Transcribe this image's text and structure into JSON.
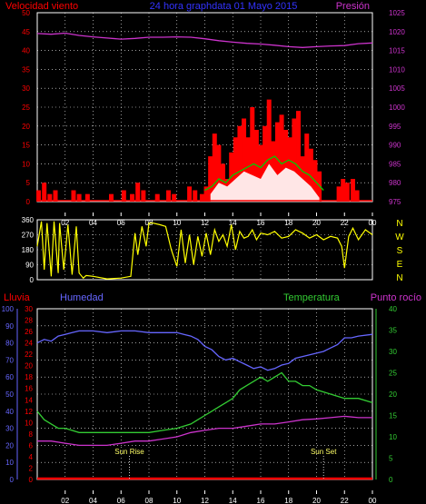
{
  "header": {
    "wind_label": "Velocidad viento",
    "title": "24 hora graphdata  01 Mayo 2015",
    "pressure_label": "Presión"
  },
  "dir_labels": [
    "N",
    "W",
    "S",
    "E",
    "N"
  ],
  "bottom_header": {
    "rain_label": "Lluvia",
    "humidity_label": "Humedad",
    "temperature_label": "Temperatura",
    "dewpoint_label": "Punto rocío"
  },
  "annotations": {
    "sunrise": "Sun Rise",
    "sunset": "Sun Set"
  },
  "colors": {
    "wind": "#ff0000",
    "gust": "#ffffff",
    "avg_wind": "#00cc00",
    "pressure": "#cc33cc",
    "direction": "#ffff00",
    "humidity": "#6666ff",
    "temperature": "#33cc33",
    "dewpoint": "#cc33cc",
    "rain": "#ff0000",
    "text": "#ff0000",
    "grid": "#ffffff"
  },
  "chart_data": [
    {
      "type": "area",
      "name": "wind-pressure",
      "title": "24 hora graphdata  01 Mayo 2015",
      "x_ticks": [
        "02",
        "04",
        "06",
        "08",
        "10",
        "12",
        "14",
        "16",
        "18",
        "20",
        "22",
        "00"
      ],
      "y_left": {
        "label": "Velocidad viento",
        "range": [
          0,
          50
        ],
        "ticks": [
          "0",
          "5",
          "10",
          "15",
          "20",
          "25",
          "30",
          "35",
          "40",
          "45",
          "50"
        ]
      },
      "y_right": {
        "label": "Presión",
        "range": [
          975,
          1025
        ],
        "ticks": [
          "975",
          "980",
          "985",
          "990",
          "995",
          "1000",
          "1005",
          "1010",
          "1015",
          "1020",
          "1025"
        ]
      },
      "series": [
        {
          "name": "Presión",
          "axis": "right",
          "kind": "line",
          "x": [
            0,
            1,
            2,
            3,
            4,
            5,
            6,
            7,
            8,
            9,
            10,
            11,
            12,
            13,
            14,
            15,
            16,
            17,
            18,
            19,
            20,
            21,
            22,
            23,
            24
          ],
          "values": [
            1019.5,
            1019.3,
            1019.6,
            1019.0,
            1018.6,
            1018.3,
            1018.0,
            1018.2,
            1018.5,
            1018.5,
            1018.6,
            1018.5,
            1018.1,
            1017.6,
            1017.2,
            1016.9,
            1016.7,
            1016.4,
            1016.0,
            1015.8,
            1016.0,
            1016.2,
            1016.3,
            1016.8,
            1017.0
          ]
        },
        {
          "name": "Velocidad viento",
          "axis": "left",
          "kind": "spikes",
          "x": [
            0.1,
            0.5,
            0.9,
            1.3,
            2.6,
            3.0,
            3.6,
            5.3,
            6.2,
            6.8,
            7.2,
            7.6,
            8.6,
            9.4,
            9.8,
            10.9,
            11.3,
            11.8,
            12.1,
            12.4,
            12.7,
            13.0,
            13.3,
            13.6,
            13.9,
            14.2,
            14.5,
            14.8,
            15.1,
            15.4,
            15.7,
            16.0,
            16.3,
            16.6,
            16.9,
            17.2,
            17.5,
            17.8,
            18.1,
            18.4,
            18.7,
            19.0,
            19.3,
            19.6,
            19.9,
            20.2,
            21.6,
            21.9,
            22.2,
            22.6,
            22.9
          ],
          "values": [
            3,
            5,
            2,
            3,
            3,
            2,
            2,
            2,
            3,
            2,
            5,
            3,
            2,
            3,
            2,
            4,
            3,
            2,
            4,
            12,
            18,
            15,
            10,
            6,
            13,
            17,
            20,
            22,
            17,
            25,
            19,
            15,
            20,
            27,
            16,
            21,
            23,
            19,
            17,
            22,
            24,
            12,
            18,
            14,
            11,
            8,
            4,
            6,
            5,
            6,
            3
          ]
        },
        {
          "name": "Racha",
          "axis": "left",
          "kind": "area",
          "x": [
            12.4,
            13.0,
            13.6,
            14.2,
            14.8,
            15.4,
            16.0,
            16.6,
            17.2,
            17.8,
            18.4,
            19.0,
            19.6,
            20.2
          ],
          "values": [
            2,
            5,
            4,
            6,
            8,
            7,
            6,
            10,
            7,
            9,
            8,
            6,
            4,
            1
          ]
        },
        {
          "name": "Viento medio",
          "axis": "left",
          "kind": "line",
          "x": [
            12.0,
            12.5,
            13.0,
            13.5,
            14.0,
            14.5,
            15.0,
            15.5,
            16.0,
            16.5,
            17.0,
            17.5,
            18.0,
            18.5,
            19.0,
            19.5,
            20.0,
            20.5
          ],
          "values": [
            3,
            4,
            6,
            5,
            7,
            8,
            9,
            10,
            9,
            11,
            12,
            10,
            11,
            10,
            8,
            7,
            5,
            3
          ]
        }
      ]
    },
    {
      "type": "line",
      "name": "wind-direction",
      "x_ticks": [
        "02",
        "04",
        "06",
        "08",
        "10",
        "12",
        "14",
        "16",
        "18",
        "20",
        "22",
        "00"
      ],
      "y_left": {
        "range": [
          0,
          360
        ],
        "ticks": [
          "0",
          "90",
          "180",
          "270",
          "360"
        ]
      },
      "series": [
        {
          "name": "Dirección",
          "x": [
            0,
            0.3,
            0.5,
            0.7,
            1.0,
            1.2,
            1.5,
            1.6,
            1.9,
            2.2,
            2.5,
            2.8,
            3.0,
            3.3,
            3.5,
            4.0,
            5.0,
            6.0,
            6.7,
            7.0,
            7.2,
            7.5,
            7.8,
            8.0,
            8.3,
            8.8,
            9.2,
            9.6,
            10.0,
            10.3,
            10.6,
            10.9,
            11.2,
            11.5,
            11.8,
            12.1,
            12.4,
            12.7,
            13.0,
            13.3,
            13.6,
            13.9,
            14.2,
            14.5,
            14.8,
            15.1,
            15.4,
            15.7,
            16.0,
            16.5,
            17.0,
            17.5,
            18.0,
            18.5,
            19.0,
            19.5,
            20.0,
            20.5,
            21.0,
            21.5,
            21.8,
            22.0,
            22.3,
            22.6,
            23.0,
            23.5,
            24.0
          ],
          "values": [
            200,
            350,
            60,
            340,
            20,
            350,
            40,
            340,
            60,
            330,
            30,
            320,
            40,
            10,
            25,
            20,
            5,
            10,
            20,
            280,
            150,
            320,
            200,
            340,
            340,
            330,
            320,
            180,
            80,
            300,
            100,
            270,
            90,
            260,
            140,
            280,
            150,
            300,
            230,
            270,
            200,
            330,
            180,
            290,
            250,
            260,
            300,
            240,
            280,
            270,
            290,
            250,
            260,
            300,
            280,
            250,
            270,
            240,
            260,
            250,
            200,
            70,
            260,
            310,
            240,
            300,
            270
          ]
        }
      ]
    },
    {
      "type": "line",
      "name": "humidity-temperature",
      "x_ticks": [
        "02",
        "04",
        "06",
        "08",
        "10",
        "12",
        "14",
        "16",
        "18",
        "20",
        "22",
        "00"
      ],
      "y_left_outer": {
        "label": "Humedad",
        "range": [
          0,
          100
        ],
        "ticks": [
          "0",
          "10",
          "20",
          "30",
          "40",
          "50",
          "60",
          "70",
          "80",
          "90",
          "100"
        ]
      },
      "y_left_inner": {
        "label": "Lluvia",
        "range": [
          0,
          30
        ],
        "ticks": [
          "0",
          "2",
          "4",
          "6",
          "8",
          "10",
          "12",
          "14",
          "16",
          "18",
          "20",
          "22",
          "24",
          "26",
          "28",
          "30"
        ]
      },
      "y_right": {
        "label": "Temperatura",
        "range": [
          0,
          40
        ],
        "ticks": [
          "0",
          "5",
          "10",
          "15",
          "20",
          "25",
          "30",
          "35",
          "40"
        ]
      },
      "series": [
        {
          "name": "Humedad",
          "axis": "outer",
          "x": [
            0,
            0.5,
            1,
            1.5,
            2,
            2.5,
            3,
            4,
            5,
            6,
            7,
            8,
            9,
            10,
            10.5,
            11,
            11.5,
            12,
            12.5,
            13,
            13.5,
            14,
            14.5,
            15,
            15.5,
            16,
            16.5,
            17,
            17.5,
            18,
            18.5,
            19,
            19.5,
            20,
            20.5,
            21,
            21.5,
            22,
            22.5,
            23,
            24
          ],
          "values": [
            80,
            82,
            81,
            84,
            85,
            86,
            87,
            87,
            86,
            87,
            87,
            86,
            86,
            86,
            85,
            84,
            82,
            78,
            76,
            72,
            70,
            71,
            69,
            67,
            65,
            66,
            64,
            65,
            67,
            68,
            71,
            72,
            73,
            74,
            75,
            77,
            79,
            83,
            83,
            84,
            85
          ]
        },
        {
          "name": "Temperatura",
          "axis": "right",
          "x": [
            0,
            0.5,
            1,
            1.5,
            2,
            3,
            4,
            5,
            6,
            7,
            8,
            9,
            10,
            10.5,
            11,
            11.5,
            12,
            12.5,
            13,
            13.5,
            14,
            14.5,
            15,
            15.5,
            16,
            16.5,
            17,
            17.5,
            18,
            18.5,
            19,
            19.5,
            20,
            21,
            22,
            23,
            24
          ],
          "values": [
            16,
            14,
            13,
            12,
            12,
            11,
            11,
            11,
            11,
            11,
            11,
            11.5,
            12,
            12.5,
            13,
            14,
            15,
            16,
            17,
            18,
            19,
            21,
            22,
            23,
            24,
            23,
            24,
            25,
            23,
            23,
            22,
            22,
            21,
            20,
            19,
            19,
            18
          ]
        },
        {
          "name": "Punto rocío",
          "axis": "right",
          "x": [
            0,
            1,
            2,
            3,
            4,
            5,
            6,
            7,
            8,
            9,
            10,
            11,
            12,
            13,
            14,
            15,
            16,
            17,
            18,
            19,
            20,
            21,
            22,
            23,
            24
          ],
          "values": [
            9,
            9,
            8.5,
            8,
            8,
            8,
            8.5,
            9,
            9,
            9.5,
            10,
            11,
            11.5,
            12,
            12,
            12.5,
            13,
            13,
            13.5,
            14,
            14.2,
            14.5,
            14.8,
            14.5,
            14.5
          ]
        },
        {
          "name": "Lluvia",
          "axis": "inner",
          "x": [
            0,
            24
          ],
          "values": [
            0,
            0
          ]
        }
      ],
      "annotations": [
        {
          "label": "Sun Rise",
          "x": 6.6
        },
        {
          "label": "Sun Set",
          "x": 20.5
        }
      ]
    }
  ]
}
